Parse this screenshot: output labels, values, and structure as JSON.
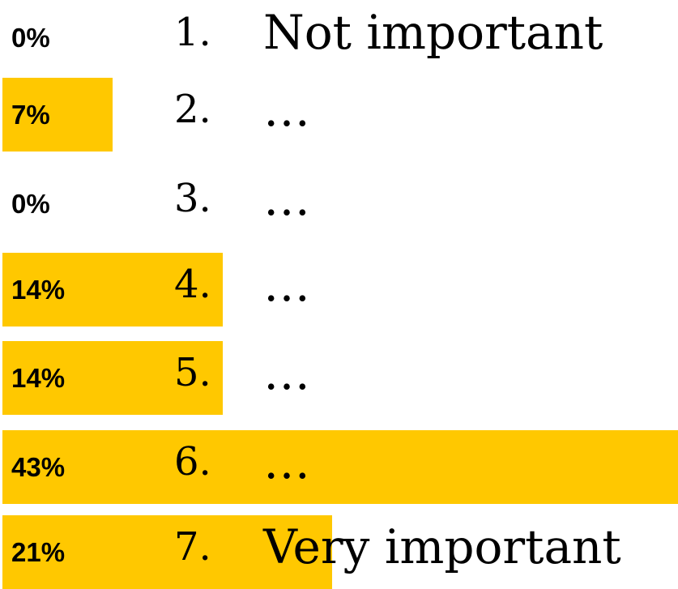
{
  "chart_data": {
    "type": "bar",
    "orientation": "horizontal",
    "categories": [
      "1.",
      "2.",
      "3.",
      "4.",
      "5.",
      "6.",
      "7."
    ],
    "labels": [
      "Not important",
      "…",
      "…",
      "…",
      "…",
      "…",
      "Very important"
    ],
    "values": [
      0,
      7,
      0,
      14,
      14,
      43,
      21
    ],
    "value_labels": [
      "0%",
      "7%",
      "0%",
      "14%",
      "14%",
      "43%",
      "21%"
    ],
    "unit": "%",
    "bar_color": "#ffc800",
    "title": "",
    "xlabel": "",
    "ylabel": ""
  }
}
